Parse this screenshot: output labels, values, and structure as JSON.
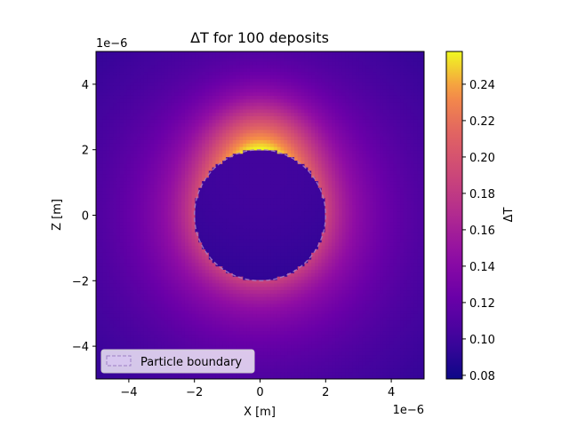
{
  "chart_data": {
    "type": "heatmap",
    "title": "ΔT for 100 deposits",
    "xlabel": "X [m]",
    "ylabel": "Z [m]",
    "x_offset_label": "1e−6",
    "y_offset_label": "1e−6",
    "xlim": [
      -5e-06,
      5e-06
    ],
    "ylim": [
      -5e-06,
      5e-06
    ],
    "x_ticks": [
      -4,
      -2,
      0,
      2,
      4
    ],
    "y_ticks": [
      -4,
      -2,
      0,
      2,
      4
    ],
    "x_tick_labels": [
      "−4",
      "−2",
      "0",
      "2",
      "4"
    ],
    "y_tick_labels": [
      "−4",
      "−2",
      "0",
      "2",
      "4"
    ],
    "colormap": "plasma",
    "colorbar": {
      "label": "ΔT",
      "min": 0.078,
      "max": 0.258,
      "ticks": [
        0.08,
        0.1,
        0.12,
        0.14,
        0.16,
        0.18,
        0.2,
        0.22,
        0.24
      ],
      "tick_labels": [
        "0.08",
        "0.10",
        "0.12",
        "0.14",
        "0.16",
        "0.18",
        "0.20",
        "0.22",
        "0.24"
      ]
    },
    "field": {
      "particle_center": [
        0,
        0
      ],
      "particle_radius": 2e-06,
      "peak_value": 0.258,
      "peak_location": [
        0,
        2e-06
      ],
      "interior_value": 0.1,
      "min_value": 0.078
    },
    "overlay": {
      "shape": "circle",
      "center": [
        0,
        0
      ],
      "radius": 2e-06,
      "style": "dashed"
    },
    "legend": {
      "placement": "lower-left",
      "entries": [
        {
          "label": "Particle boundary",
          "style": "dashed"
        }
      ]
    },
    "grid": false
  }
}
